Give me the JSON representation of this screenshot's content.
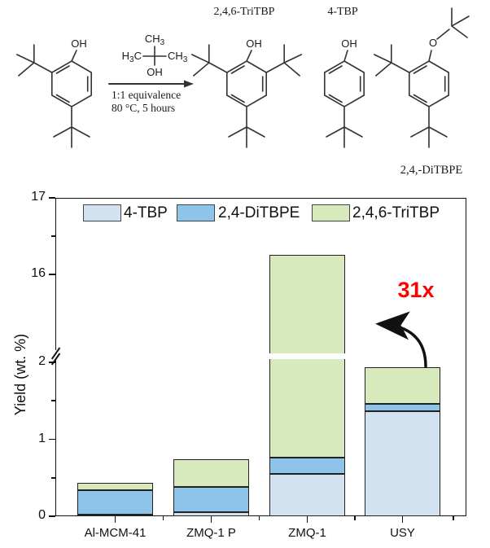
{
  "scheme": {
    "atoms": {
      "oh": "OH",
      "o": "O",
      "h": "H",
      "c": "C",
      "ch": "CH",
      "sub3": "3"
    },
    "conditions_line1": "1:1 equivalence",
    "conditions_line2": "80 °C, 5 hours",
    "product1_title": "2,4,6-TriTBP",
    "product2_title": "4-TBP",
    "product3_label": "2,4,-DiTBPE"
  },
  "chart": {
    "ylabel": "Yield (wt. %)",
    "annotation": {
      "text": "31x",
      "color": "#ff0000"
    }
  },
  "chart_data": {
    "type": "bar",
    "stacked": true,
    "categories": [
      "Al-MCM-41",
      "ZMQ-1 P",
      "ZMQ-1",
      "USY"
    ],
    "series": [
      {
        "name": "4-TBP",
        "color": "#d3e2f0",
        "values": [
          0.02,
          0.05,
          0.55,
          1.37
        ]
      },
      {
        "name": "2,4-DiTBPE",
        "color": "#8fc4ea",
        "values": [
          0.32,
          0.33,
          0.21,
          0.09
        ]
      },
      {
        "name": "2,4,6-TriTBP",
        "color": "#d7e9bd",
        "values": [
          0.09,
          0.36,
          15.5,
          0.48
        ]
      }
    ],
    "totals": [
      0.43,
      0.74,
      16.26,
      1.94
    ],
    "xlabel": "",
    "ylabel": "Yield (wt. %)",
    "axis_break": {
      "lower_range": [
        0,
        2
      ],
      "upper_range": [
        16,
        17
      ]
    },
    "y_ticks_lower": [
      0,
      1,
      2
    ],
    "y_minor_lower": [
      0.5,
      1.5
    ],
    "y_ticks_upper": [
      16,
      17
    ],
    "y_minor_upper": [
      16.5
    ],
    "grid": false,
    "legend_position": "top-inside",
    "annotation": "31x"
  }
}
